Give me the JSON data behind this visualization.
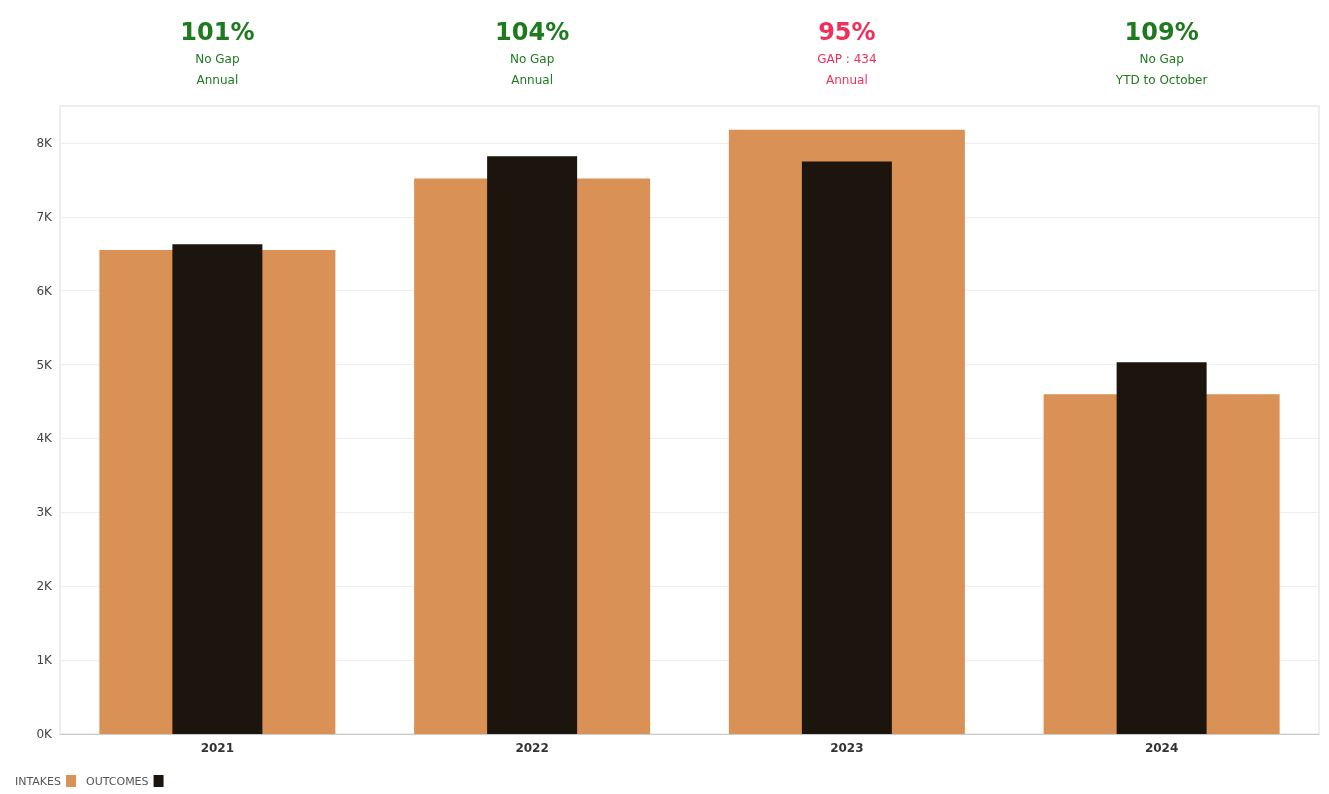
{
  "chart_data": {
    "type": "bar",
    "categories": [
      "2021",
      "2022",
      "2023",
      "2024"
    ],
    "series": [
      {
        "name": "INTAKES",
        "color": "#d99155",
        "values": [
          6550,
          7520,
          8180,
          4600
        ]
      },
      {
        "name": "OUTCOMES",
        "color": "#1c150d",
        "values": [
          6630,
          7820,
          7750,
          5030
        ]
      }
    ],
    "ylim": [
      0,
      8500
    ],
    "yticks": [
      {
        "value": 0,
        "label": "0K"
      },
      {
        "value": 1000,
        "label": "1K"
      },
      {
        "value": 2000,
        "label": "2K"
      },
      {
        "value": 3000,
        "label": "3K"
      },
      {
        "value": 4000,
        "label": "4K"
      },
      {
        "value": 5000,
        "label": "5K"
      },
      {
        "value": 6000,
        "label": "6K"
      },
      {
        "value": 7000,
        "label": "7K"
      },
      {
        "value": 8000,
        "label": "8K"
      }
    ],
    "grid": "y",
    "legend": "bottom left",
    "annotations": [
      "101%\nNo Gap\nAnnual",
      "104%\nNo Gap\nAnnual",
      "95%\nGAP : 434\nAnnual",
      "109%\nNo Gap\nYTD to October"
    ]
  }
}
